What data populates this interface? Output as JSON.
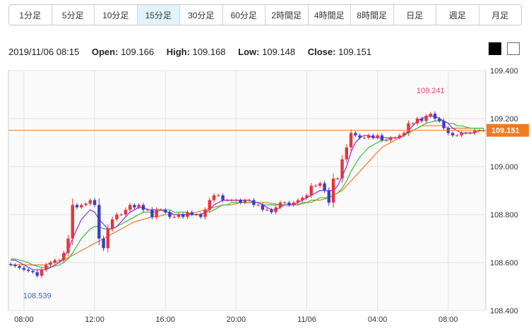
{
  "timeframes": [
    {
      "label": "1分足",
      "active": false
    },
    {
      "label": "5分足",
      "active": false
    },
    {
      "label": "10分足",
      "active": false
    },
    {
      "label": "15分足",
      "active": true
    },
    {
      "label": "30分足",
      "active": false
    },
    {
      "label": "60分足",
      "active": false
    },
    {
      "label": "2時間足",
      "active": false
    },
    {
      "label": "4時間足",
      "active": false
    },
    {
      "label": "8時間足",
      "active": false
    },
    {
      "label": "日足",
      "active": false
    },
    {
      "label": "週足",
      "active": false
    },
    {
      "label": "月足",
      "active": false
    }
  ],
  "ohlc": {
    "datetime": "2019/11/06 08:15",
    "open_label": "Open:",
    "open": "109.166",
    "high_label": "High:",
    "high": "109.168",
    "low_label": "Low:",
    "low": "109.148",
    "close_label": "Close:",
    "close": "109.151"
  },
  "theme": {
    "dark": "#000000",
    "light": "#ffffff"
  },
  "colors": {
    "up": "#e8333d",
    "down": "#3b3fc0",
    "ma_fast": "#8a2be2",
    "ma_mid": "#2fbf3a",
    "ma_slow": "#f07b1f",
    "current": "#f07b1f",
    "max_label": "#e0436a",
    "min_label": "#4466aa"
  },
  "chart_data": {
    "type": "candlestick",
    "ylim": [
      108.4,
      109.4
    ],
    "y_ticks": [
      "109.400",
      "109.200",
      "109.000",
      "108.800",
      "108.600",
      "108.400"
    ],
    "x_ticks": [
      "08:00",
      "12:00",
      "16:00",
      "20:00",
      "11/06",
      "04:00",
      "08:00"
    ],
    "current_price": "109.151",
    "max_label": "109.241",
    "min_label": "108.539",
    "closes": [
      108.59,
      108.585,
      108.578,
      108.57,
      108.565,
      108.56,
      108.545,
      108.57,
      108.59,
      108.6,
      108.61,
      108.61,
      108.64,
      108.7,
      108.84,
      108.83,
      108.84,
      108.845,
      108.86,
      108.84,
      108.7,
      108.66,
      108.74,
      108.78,
      108.8,
      108.8,
      108.82,
      108.84,
      108.83,
      108.84,
      108.82,
      108.82,
      108.79,
      108.82,
      108.82,
      108.81,
      108.79,
      108.79,
      108.8,
      108.79,
      108.81,
      108.8,
      108.8,
      108.79,
      108.82,
      108.86,
      108.88,
      108.88,
      108.86,
      108.86,
      108.86,
      108.86,
      108.85,
      108.86,
      108.86,
      108.84,
      108.84,
      108.82,
      108.82,
      108.81,
      108.83,
      108.85,
      108.85,
      108.84,
      108.85,
      108.86,
      108.87,
      108.88,
      108.92,
      108.92,
      108.93,
      108.9,
      108.85,
      108.95,
      108.95,
      109.03,
      109.08,
      109.14,
      109.13,
      109.12,
      109.12,
      109.13,
      109.12,
      109.13,
      109.11,
      109.11,
      109.12,
      109.12,
      109.13,
      109.14,
      109.18,
      109.18,
      109.2,
      109.19,
      109.21,
      109.22,
      109.2,
      109.19,
      109.16,
      109.14,
      109.13,
      109.13,
      109.14,
      109.14,
      109.14,
      109.15,
      109.15,
      109.151
    ],
    "ma_fast": [
      108.61,
      108.61,
      108.6,
      108.59,
      108.58,
      108.57,
      108.57,
      108.57,
      108.57,
      108.58,
      108.59,
      108.6,
      108.62,
      108.65,
      108.7,
      108.74,
      108.78,
      108.8,
      108.82,
      108.81,
      108.78,
      108.76,
      108.74,
      108.74,
      108.75,
      108.77,
      108.79,
      108.81,
      108.82,
      108.83,
      108.83,
      108.82,
      108.82,
      108.82,
      108.82,
      108.81,
      108.81,
      108.8,
      108.8,
      108.8,
      108.8,
      108.8,
      108.8,
      108.8,
      108.81,
      108.82,
      108.84,
      108.85,
      108.86,
      108.86,
      108.86,
      108.86,
      108.86,
      108.86,
      108.86,
      108.85,
      108.85,
      108.84,
      108.83,
      108.82,
      108.82,
      108.83,
      108.84,
      108.84,
      108.84,
      108.85,
      108.86,
      108.87,
      108.88,
      108.89,
      108.9,
      108.9,
      108.9,
      108.9,
      108.92,
      108.96,
      109.0,
      109.06,
      109.1,
      109.12,
      109.13,
      109.13,
      109.12,
      109.12,
      109.12,
      109.12,
      109.12,
      109.12,
      109.12,
      109.13,
      109.15,
      109.17,
      109.19,
      109.2,
      109.21,
      109.21,
      109.21,
      109.2,
      109.19,
      109.18,
      109.16,
      109.15,
      109.14,
      109.14,
      109.14,
      109.14,
      109.15,
      109.15
    ],
    "ma_mid": [
      108.615,
      108.615,
      108.61,
      108.605,
      108.6,
      108.59,
      108.585,
      108.58,
      108.58,
      108.58,
      108.585,
      108.59,
      108.6,
      108.615,
      108.64,
      108.67,
      108.7,
      108.72,
      108.74,
      108.75,
      108.75,
      108.74,
      108.74,
      108.74,
      108.75,
      108.76,
      108.77,
      108.78,
      108.79,
      108.8,
      108.81,
      108.81,
      108.81,
      108.81,
      108.82,
      108.82,
      108.82,
      108.81,
      108.81,
      108.81,
      108.81,
      108.8,
      108.8,
      108.8,
      108.81,
      108.81,
      108.82,
      108.83,
      108.84,
      108.84,
      108.85,
      108.85,
      108.85,
      108.85,
      108.85,
      108.85,
      108.85,
      108.84,
      108.84,
      108.84,
      108.84,
      108.84,
      108.84,
      108.84,
      108.84,
      108.84,
      108.85,
      108.85,
      108.86,
      108.86,
      108.87,
      108.87,
      108.87,
      108.88,
      108.89,
      108.91,
      108.94,
      108.98,
      109.01,
      109.04,
      109.06,
      109.08,
      109.09,
      109.1,
      109.11,
      109.11,
      109.12,
      109.12,
      109.12,
      109.13,
      109.14,
      109.15,
      109.16,
      109.17,
      109.18,
      109.185,
      109.19,
      109.19,
      109.19,
      109.18,
      109.18,
      109.17,
      109.17,
      109.165,
      109.16,
      109.16,
      109.16,
      109.16
    ],
    "ma_slow": [
      108.59,
      108.59,
      108.59,
      108.59,
      108.59,
      108.59,
      108.59,
      108.59,
      108.59,
      108.6,
      108.6,
      108.6,
      108.61,
      108.62,
      108.63,
      108.64,
      108.65,
      108.66,
      108.67,
      108.68,
      108.69,
      108.7,
      108.71,
      108.72,
      108.73,
      108.74,
      108.75,
      108.76,
      108.77,
      108.775,
      108.78,
      108.785,
      108.79,
      108.79,
      108.795,
      108.8,
      108.8,
      108.8,
      108.8,
      108.8,
      108.8,
      108.805,
      108.81,
      108.815,
      108.82,
      108.825,
      108.83,
      108.835,
      108.84,
      108.84,
      108.84,
      108.845,
      108.85,
      108.85,
      108.85,
      108.85,
      108.85,
      108.85,
      108.85,
      108.845,
      108.845,
      108.84,
      108.84,
      108.84,
      108.84,
      108.84,
      108.845,
      108.85,
      108.85,
      108.86,
      108.86,
      108.865,
      108.87,
      108.88,
      108.89,
      108.9,
      108.92,
      108.94,
      108.96,
      108.98,
      109.0,
      109.02,
      109.04,
      109.06,
      109.08,
      109.09,
      109.1,
      109.11,
      109.12,
      109.13,
      109.14,
      109.15,
      109.16,
      109.17,
      109.17,
      109.17,
      109.17,
      109.17,
      109.17,
      109.16,
      109.16,
      109.16,
      109.16,
      109.16,
      109.16,
      109.16,
      109.16,
      109.16
    ]
  }
}
